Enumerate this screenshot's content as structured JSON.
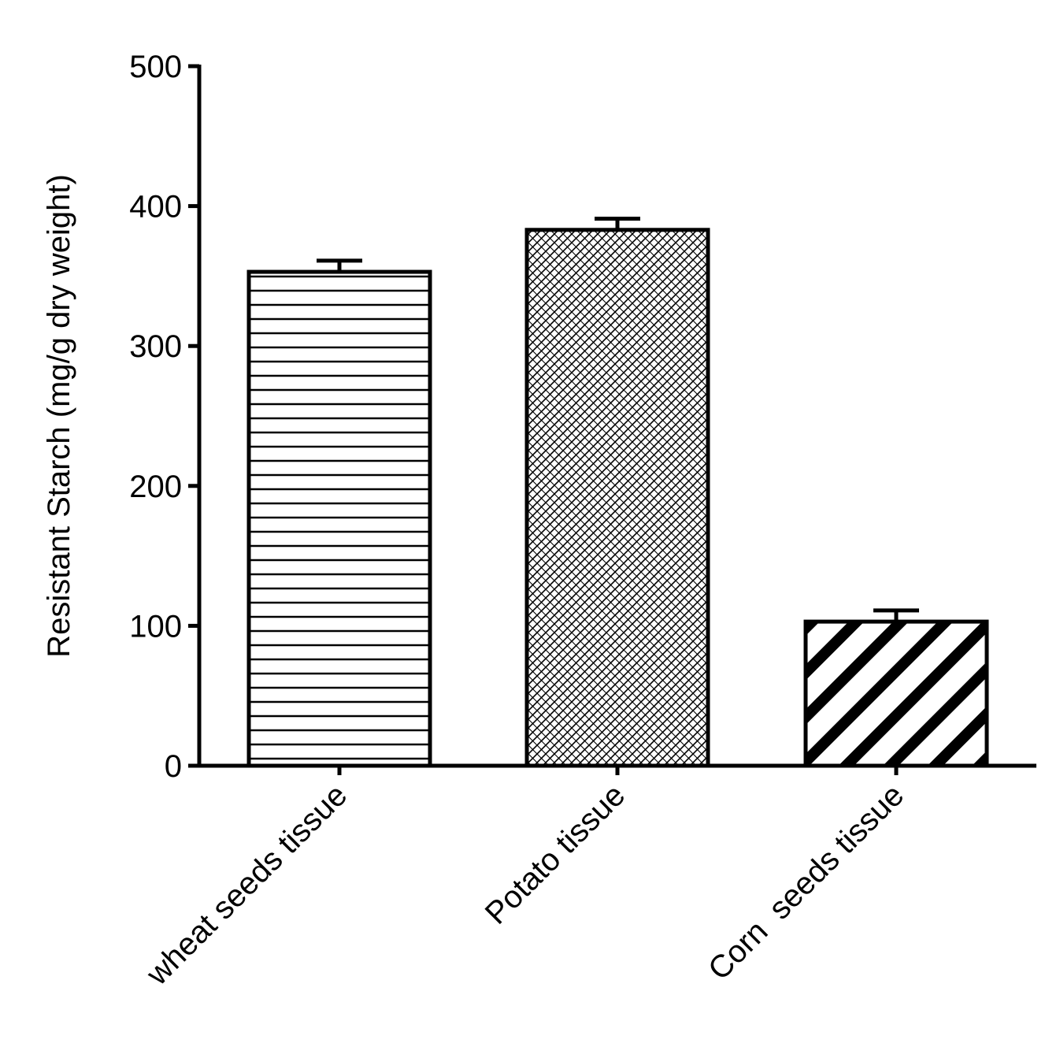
{
  "chart_data": {
    "type": "bar",
    "title": "",
    "xlabel": "",
    "ylabel": "Resistant Starch (mg/g dry weight)",
    "ylim": [
      0,
      500
    ],
    "yticks": [
      0,
      100,
      200,
      300,
      400,
      500
    ],
    "grid": false,
    "legend": "none",
    "categories": [
      "wheat seeds tissue",
      "Potato tissue",
      "Corn  seeds tissue"
    ],
    "values": [
      353,
      383,
      103
    ],
    "errors": [
      8,
      8,
      8
    ],
    "fill_patterns": [
      "horizontal-lines",
      "crosshatch",
      "diagonal-stripes"
    ],
    "colors": {
      "stroke": "#000000",
      "background": "#ffffff"
    }
  }
}
